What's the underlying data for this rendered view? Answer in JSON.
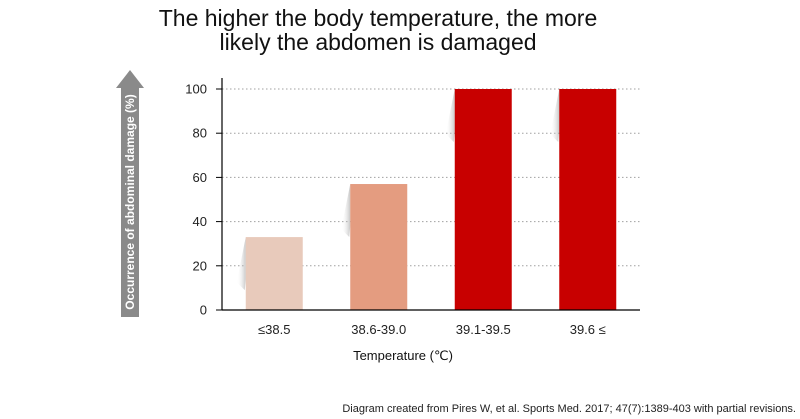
{
  "chart_data": {
    "type": "bar",
    "title_lines": [
      "The higher the body temperature, the more",
      "likely the abdomen is damaged"
    ],
    "ylabel": "Occurrence of abdominal damage (%)",
    "xlabel": "Temperature (℃)",
    "categories": [
      "≤38.5",
      "38.6-39.0",
      "39.1-39.5",
      "39.6 ≤"
    ],
    "values": [
      33,
      57,
      100,
      100
    ],
    "colors": [
      "#e8cabb",
      "#e49c80",
      "#c80000",
      "#c80000"
    ],
    "ylim": [
      0,
      100
    ],
    "yticks": [
      0,
      20,
      40,
      60,
      80,
      100
    ],
    "grid": true,
    "source_note": "Diagram created from Pires W, et al. Sports Med. 2017; 47(7):1389-403 with partial revisions."
  }
}
